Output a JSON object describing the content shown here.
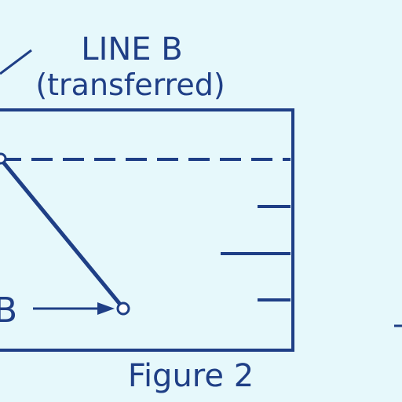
{
  "diagram": {
    "line_label": "LINE B",
    "line_sublabel": "(transferred)",
    "point_label": "B",
    "caption": "Figure 2",
    "ink_color": "#1f3f86",
    "background_color": "#e6f8fb"
  }
}
